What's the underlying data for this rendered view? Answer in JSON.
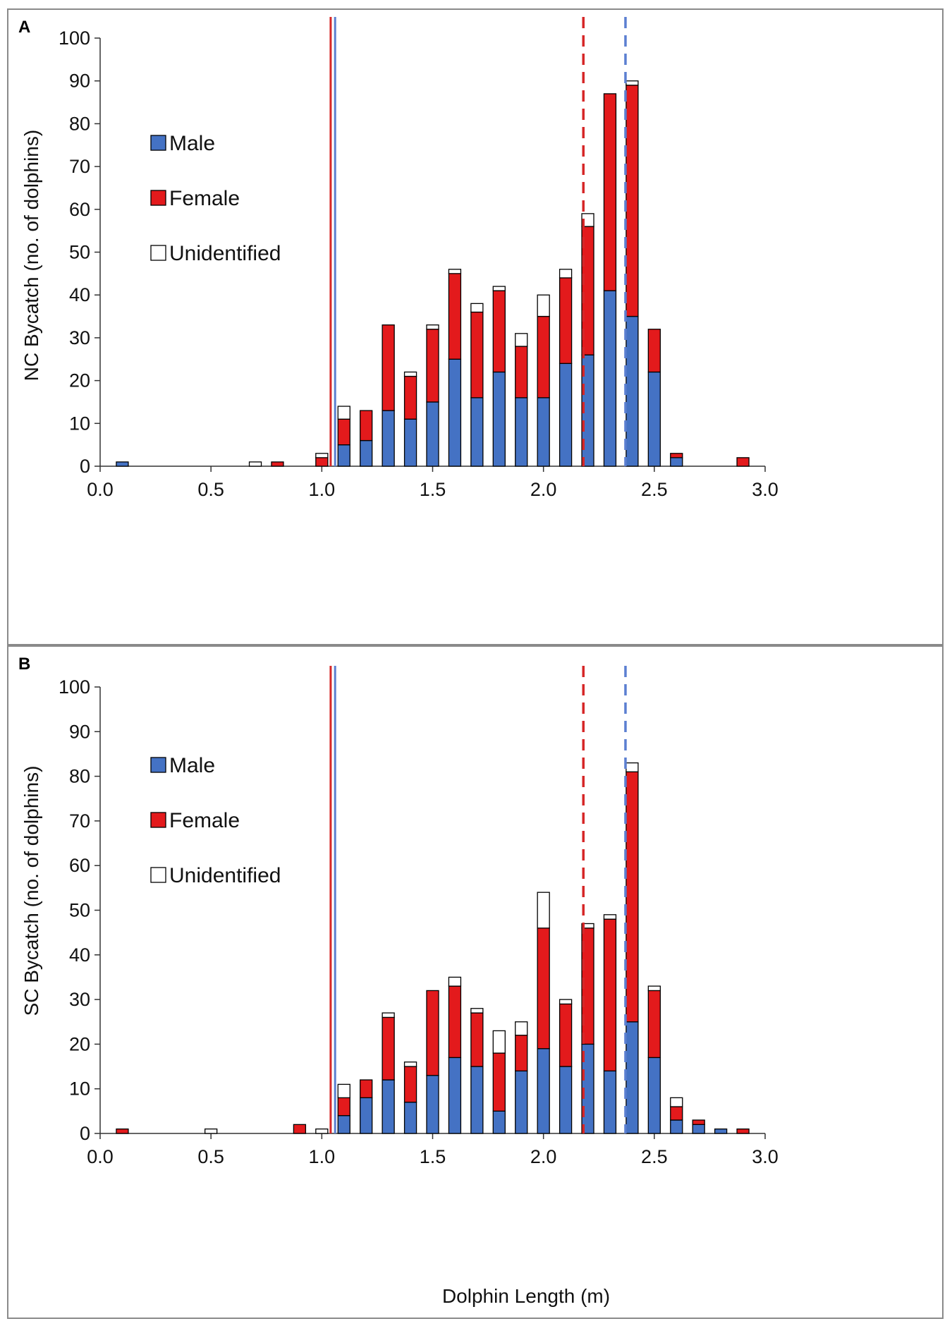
{
  "figure": {
    "x_axis_title": "Dolphin Length (m)",
    "legend": [
      {
        "key": "male",
        "label": "Male",
        "color": "#4472c4"
      },
      {
        "key": "female",
        "label": "Female",
        "color": "#e31a1c"
      },
      {
        "key": "unidentified",
        "label": "Unidentified",
        "color": "#ffffff"
      }
    ],
    "colors": {
      "male": "#4472c4",
      "female": "#e31a1c",
      "unidentified": "#ffffff",
      "female_median_line": "#d62728",
      "male_median_line": "#5b7fd1",
      "outline": "#000000",
      "panel_border": "#8a8a8a"
    }
  },
  "chart_data": [
    {
      "panel": "A",
      "type": "bar",
      "stacked": true,
      "ylabel": "NC Bycatch (no. of dolphins)",
      "xlabel": "",
      "xlim": [
        0.0,
        3.0
      ],
      "ylim": [
        0,
        100
      ],
      "x_ticks": [
        "0.0",
        "0.5",
        "1.0",
        "1.5",
        "2.0",
        "2.5",
        "3.0"
      ],
      "y_ticks": [
        "0",
        "10",
        "20",
        "30",
        "40",
        "50",
        "60",
        "70",
        "80",
        "90",
        "100"
      ],
      "x": [
        0.1,
        0.7,
        0.8,
        1.0,
        1.1,
        1.2,
        1.3,
        1.4,
        1.5,
        1.6,
        1.7,
        1.8,
        1.9,
        2.0,
        2.1,
        2.2,
        2.3,
        2.4,
        2.5,
        2.6,
        2.9
      ],
      "series": [
        {
          "name": "Male",
          "values": [
            1,
            0,
            0,
            0,
            5,
            6,
            13,
            11,
            15,
            25,
            16,
            22,
            16,
            16,
            24,
            26,
            41,
            35,
            22,
            2,
            0
          ]
        },
        {
          "name": "Female",
          "values": [
            0,
            0,
            1,
            2,
            6,
            7,
            20,
            10,
            17,
            20,
            20,
            19,
            12,
            19,
            20,
            30,
            46,
            54,
            10,
            1,
            2
          ]
        },
        {
          "name": "Unidentified",
          "values": [
            0,
            1,
            0,
            1,
            3,
            0,
            0,
            1,
            1,
            1,
            2,
            1,
            3,
            5,
            2,
            3,
            0,
            1,
            0,
            0,
            0
          ]
        }
      ],
      "reference_lines": [
        {
          "x": 1.04,
          "style": "solid",
          "series": "Female"
        },
        {
          "x": 1.06,
          "style": "solid",
          "series": "Male"
        },
        {
          "x": 2.18,
          "style": "dashed",
          "series": "Female"
        },
        {
          "x": 2.37,
          "style": "dashed",
          "series": "Male"
        }
      ]
    },
    {
      "panel": "B",
      "type": "bar",
      "stacked": true,
      "ylabel": "SC Bycatch (no. of dolphins)",
      "xlabel": "Dolphin Length (m)",
      "xlim": [
        0.0,
        3.0
      ],
      "ylim": [
        0,
        100
      ],
      "x_ticks": [
        "0.0",
        "0.5",
        "1.0",
        "1.5",
        "2.0",
        "2.5",
        "3.0"
      ],
      "y_ticks": [
        "0",
        "10",
        "20",
        "30",
        "40",
        "50",
        "60",
        "70",
        "80",
        "90",
        "100"
      ],
      "x": [
        0.1,
        0.5,
        0.9,
        1.0,
        1.1,
        1.2,
        1.3,
        1.4,
        1.5,
        1.6,
        1.7,
        1.8,
        1.9,
        2.0,
        2.1,
        2.2,
        2.3,
        2.4,
        2.5,
        2.6,
        2.7,
        2.8,
        2.9
      ],
      "series": [
        {
          "name": "Male",
          "values": [
            0,
            0,
            0,
            0,
            4,
            8,
            12,
            7,
            13,
            17,
            15,
            5,
            14,
            19,
            15,
            20,
            14,
            25,
            17,
            3,
            2,
            1,
            0
          ]
        },
        {
          "name": "Female",
          "values": [
            1,
            0,
            2,
            0,
            4,
            4,
            14,
            8,
            19,
            16,
            12,
            13,
            8,
            27,
            14,
            26,
            34,
            56,
            15,
            3,
            1,
            0,
            1
          ]
        },
        {
          "name": "Unidentified",
          "values": [
            0,
            1,
            0,
            1,
            3,
            0,
            1,
            1,
            0,
            2,
            1,
            5,
            3,
            8,
            1,
            1,
            1,
            2,
            1,
            2,
            0,
            0,
            0
          ]
        }
      ],
      "reference_lines": [
        {
          "x": 1.04,
          "style": "solid",
          "series": "Female"
        },
        {
          "x": 1.06,
          "style": "solid",
          "series": "Male"
        },
        {
          "x": 2.18,
          "style": "dashed",
          "series": "Female"
        },
        {
          "x": 2.37,
          "style": "dashed",
          "series": "Male"
        }
      ]
    }
  ]
}
